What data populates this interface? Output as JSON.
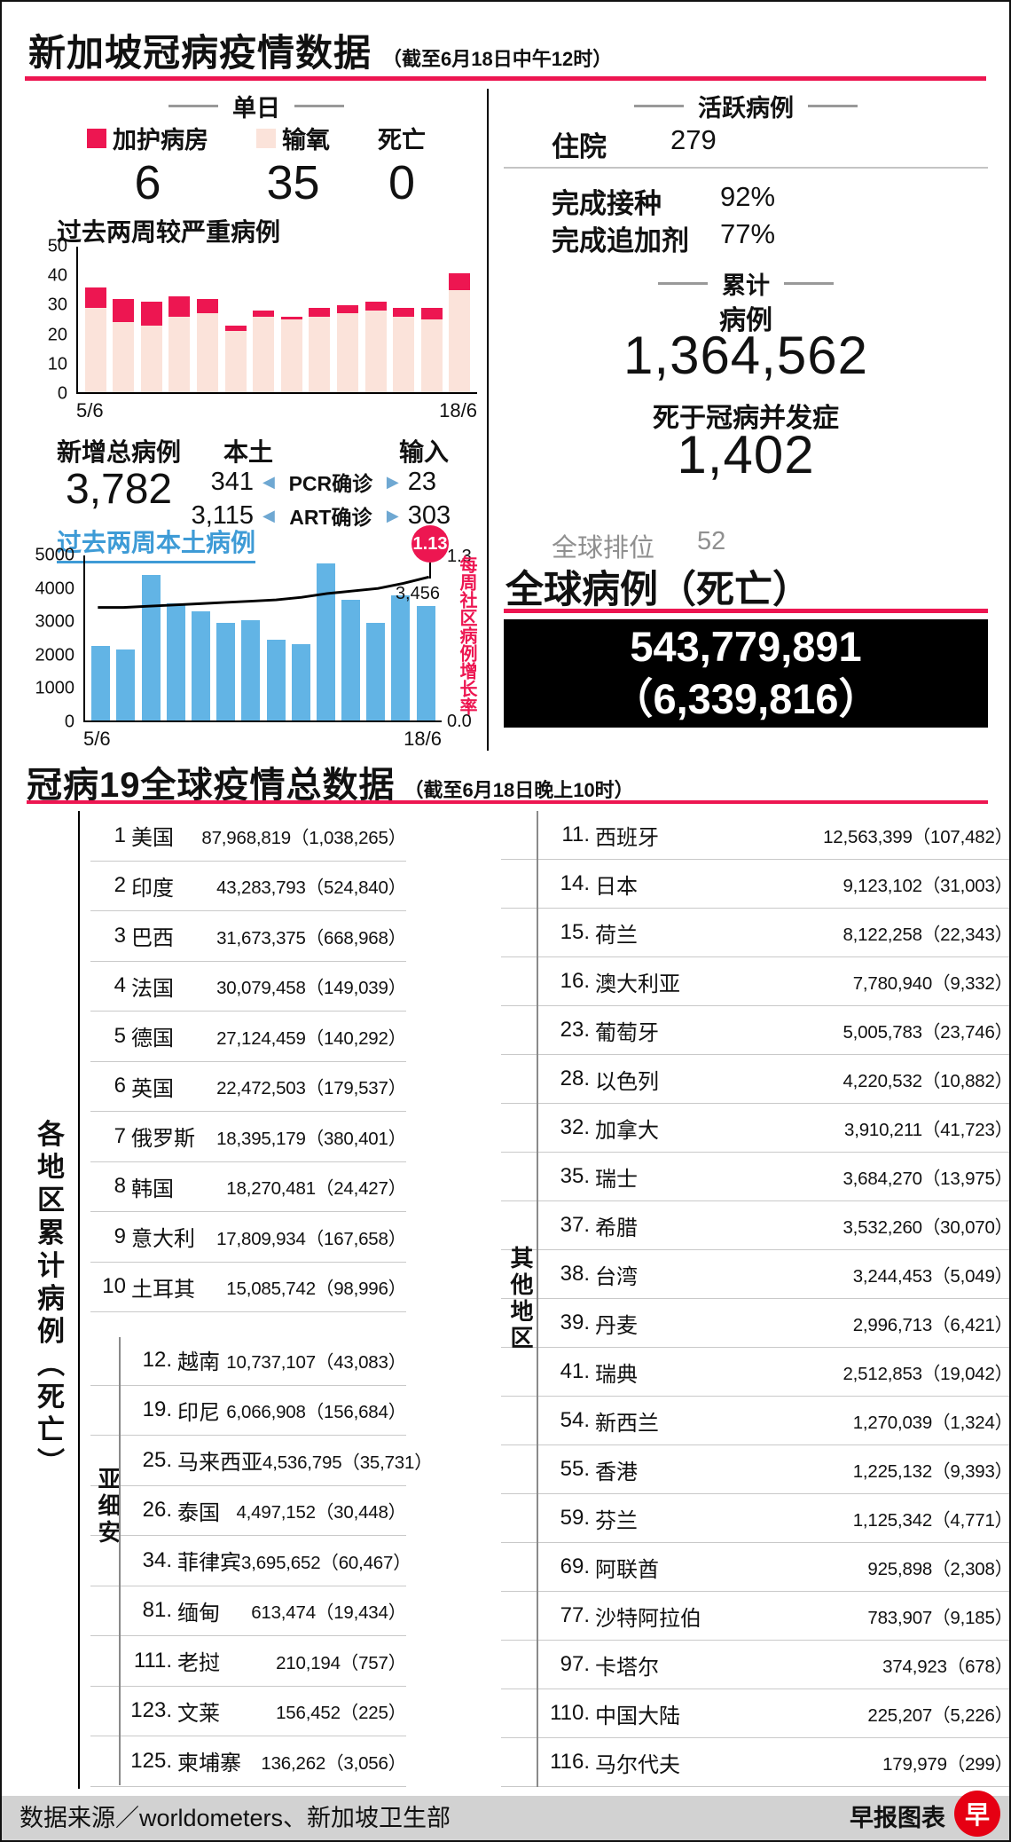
{
  "colors": {
    "accent_red": "#ed1651",
    "pale_pink": "#fbe3da",
    "bar_blue": "#62b4e5",
    "heading_blue": "#3e9bd6",
    "logo_red": "#e60013",
    "footer_grey": "#d2d2d2",
    "global_box_bg": "#000000"
  },
  "page": {
    "title": "新加坡冠病疫情数据",
    "title_note": "（截至6月18日中午12时）"
  },
  "daily": {
    "section_label": "单日",
    "items": [
      {
        "label": "加护病房",
        "value": "6",
        "swatch": "#ed1651"
      },
      {
        "label": "输氧",
        "value": "35",
        "swatch": "#fbe3da"
      },
      {
        "label": "死亡",
        "value": "0"
      }
    ]
  },
  "new_cases": {
    "total_label": "新增总病例",
    "total": "3,782",
    "local_label": "本土",
    "import_label": "输入",
    "arrow_left": "◀",
    "arrow_right": "▶",
    "rows": [
      {
        "local": "341",
        "test": "PCR确诊",
        "imported": "23"
      },
      {
        "local": "3,115",
        "test": "ART确诊",
        "imported": "303"
      }
    ]
  },
  "active": {
    "section_label": "活跃病例",
    "hospital_label": "住院",
    "hospital_value": "279",
    "vaccinated_label": "完成接种",
    "vaccinated_value": "92%",
    "booster_label": "完成追加剂",
    "booster_value": "77%"
  },
  "cumulative": {
    "section_label": "累计",
    "cases_label": "病例",
    "cases": "1,364,562",
    "deaths_label": "死于冠病并发症",
    "deaths": "1,402",
    "rank_label": "全球排位",
    "rank": "52"
  },
  "global": {
    "heading": "全球病例（死亡）",
    "cases": "543,779,891",
    "deaths": "（6,339,816）"
  },
  "world": {
    "title": "冠病19全球疫情总数据",
    "title_note": "（截至6月18日晚上10时）",
    "side_label": "各地区累计病例（死亡）",
    "asean_label": "亚细安",
    "others_label": "其他地区",
    "top10": [
      {
        "rank": "1",
        "name": "美国",
        "cases": "87,968,819",
        "deaths": "1,038,265"
      },
      {
        "rank": "2",
        "name": "印度",
        "cases": "43,283,793",
        "deaths": "524,840"
      },
      {
        "rank": "3",
        "name": "巴西",
        "cases": "31,673,375",
        "deaths": "668,968"
      },
      {
        "rank": "4",
        "name": "法国",
        "cases": "30,079,458",
        "deaths": "149,039"
      },
      {
        "rank": "5",
        "name": "德国",
        "cases": "27,124,459",
        "deaths": "140,292"
      },
      {
        "rank": "6",
        "name": "英国",
        "cases": "22,472,503",
        "deaths": "179,537"
      },
      {
        "rank": "7",
        "name": "俄罗斯",
        "cases": "18,395,179",
        "deaths": "380,401"
      },
      {
        "rank": "8",
        "name": "韩国",
        "cases": "18,270,481",
        "deaths": "24,427"
      },
      {
        "rank": "9",
        "name": "意大利",
        "cases": "17,809,934",
        "deaths": "167,658"
      },
      {
        "rank": "10",
        "name": "土耳其",
        "cases": "15,085,742",
        "deaths": "98,996"
      }
    ],
    "asean": [
      {
        "rank": "12.",
        "name": "越南",
        "cases": "10,737,107",
        "deaths": "43,083"
      },
      {
        "rank": "19.",
        "name": "印尼",
        "cases": "6,066,908",
        "deaths": "156,684"
      },
      {
        "rank": "25.",
        "name": "马来西亚",
        "cases": "4,536,795",
        "deaths": "35,731"
      },
      {
        "rank": "26.",
        "name": "泰国",
        "cases": "4,497,152",
        "deaths": "30,448"
      },
      {
        "rank": "34.",
        "name": "菲律宾",
        "cases": "3,695,652",
        "deaths": "60,467"
      },
      {
        "rank": "81.",
        "name": "缅甸",
        "cases": "613,474",
        "deaths": "19,434"
      },
      {
        "rank": "111.",
        "name": "老挝",
        "cases": "210,194",
        "deaths": "757"
      },
      {
        "rank": "123.",
        "name": "文莱",
        "cases": "156,452",
        "deaths": "225"
      },
      {
        "rank": "125.",
        "name": "柬埔寨",
        "cases": "136,262",
        "deaths": "3,056"
      }
    ],
    "others": [
      {
        "rank": "11.",
        "name": "西班牙",
        "cases": "12,563,399",
        "deaths": "107,482"
      },
      {
        "rank": "14.",
        "name": "日本",
        "cases": "9,123,102",
        "deaths": "31,003"
      },
      {
        "rank": "15.",
        "name": "荷兰",
        "cases": "8,122,258",
        "deaths": "22,343"
      },
      {
        "rank": "16.",
        "name": "澳大利亚",
        "cases": "7,780,940",
        "deaths": "9,332"
      },
      {
        "rank": "23.",
        "name": "葡萄牙",
        "cases": "5,005,783",
        "deaths": "23,746"
      },
      {
        "rank": "28.",
        "name": "以色列",
        "cases": "4,220,532",
        "deaths": "10,882"
      },
      {
        "rank": "32.",
        "name": "加拿大",
        "cases": "3,910,211",
        "deaths": "41,723"
      },
      {
        "rank": "35.",
        "name": "瑞士",
        "cases": "3,684,270",
        "deaths": "13,975"
      },
      {
        "rank": "37.",
        "name": "希腊",
        "cases": "3,532,260",
        "deaths": "30,070"
      },
      {
        "rank": "38.",
        "name": "台湾",
        "cases": "3,244,453",
        "deaths": "5,049"
      },
      {
        "rank": "39.",
        "name": "丹麦",
        "cases": "2,996,713",
        "deaths": "6,421"
      },
      {
        "rank": "41.",
        "name": "瑞典",
        "cases": "2,512,853",
        "deaths": "19,042"
      },
      {
        "rank": "54.",
        "name": "新西兰",
        "cases": "1,270,039",
        "deaths": "1,324"
      },
      {
        "rank": "55.",
        "name": "香港",
        "cases": "1,225,132",
        "deaths": "9,393"
      },
      {
        "rank": "59.",
        "name": "芬兰",
        "cases": "1,125,342",
        "deaths": "4,771"
      },
      {
        "rank": "69.",
        "name": "阿联酋",
        "cases": "925,898",
        "deaths": "2,308"
      },
      {
        "rank": "77.",
        "name": "沙特阿拉伯",
        "cases": "783,907",
        "deaths": "9,185"
      },
      {
        "rank": "97.",
        "name": "卡塔尔",
        "cases": "374,923",
        "deaths": "678"
      },
      {
        "rank": "110.",
        "name": "中国大陆",
        "cases": "225,207",
        "deaths": "5,226"
      },
      {
        "rank": "116.",
        "name": "马尔代夫",
        "cases": "179,979",
        "deaths": "299"
      }
    ]
  },
  "footer": {
    "source": "数据来源／worldometers、新加坡卫生部",
    "credit": "早报图表",
    "logo_char": "早"
  },
  "chart_data": [
    {
      "type": "bar",
      "stacked": true,
      "title": "过去两周较严重病例",
      "x": [
        "5/6",
        "",
        "",
        "",
        "",
        "",
        "",
        "",
        "",
        "",
        "",
        "",
        "",
        "18/6"
      ],
      "series": [
        {
          "name": "输氧",
          "color": "#fbe3da",
          "values": [
            29,
            24,
            23,
            26,
            27,
            21,
            26,
            25,
            26,
            27,
            28,
            26,
            25,
            35
          ]
        },
        {
          "name": "加护病房",
          "color": "#ed1651",
          "values": [
            7,
            8,
            8,
            7,
            5,
            2,
            2,
            1,
            3,
            3,
            3,
            3,
            4,
            6
          ]
        }
      ],
      "ylim": [
        0,
        50
      ],
      "yticks": [
        0,
        10,
        20,
        30,
        40,
        50
      ],
      "legend_position": "above",
      "grid": false
    },
    {
      "type": "bar",
      "title": "过去两周本土病例",
      "x": [
        "5/6",
        "",
        "",
        "",
        "",
        "",
        "",
        "",
        "",
        "",
        "",
        "",
        "",
        "18/6"
      ],
      "series": [
        {
          "name": "本土病例",
          "color": "#62b4e5",
          "values": [
            2250,
            2150,
            4400,
            3550,
            3300,
            2950,
            3050,
            2450,
            2300,
            4750,
            3650,
            2950,
            3800,
            3456
          ]
        }
      ],
      "bar_label": {
        "index": 13,
        "text": "3,456"
      },
      "line_series": {
        "name": "每周社区病例增长率",
        "color": "#000000",
        "values": [
          0.89,
          0.89,
          0.9,
          0.91,
          0.92,
          0.93,
          0.94,
          0.95,
          0.97,
          1.0,
          1.02,
          1.04,
          1.08,
          1.13
        ],
        "ylim": [
          0,
          1.3
        ],
        "yticks_right": [
          "1.3",
          "0.0"
        ],
        "last_label": "1.13"
      },
      "ylim": [
        0,
        5000
      ],
      "yticks": [
        0,
        1000,
        2000,
        3000,
        4000,
        5000
      ],
      "grid": false
    }
  ]
}
